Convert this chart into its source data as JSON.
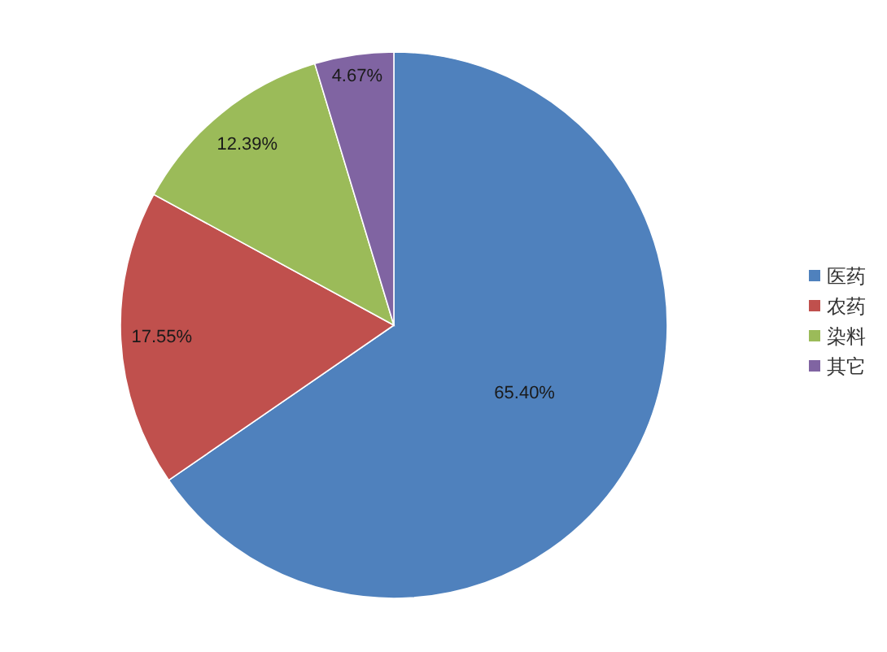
{
  "chart_data": {
    "type": "pie",
    "categories": [
      "医药",
      "农药",
      "染料",
      "其它"
    ],
    "values": [
      65.4,
      17.55,
      12.39,
      4.67
    ],
    "value_labels": [
      "65.40%",
      "17.55%",
      "12.39%",
      "4.67%"
    ],
    "colors": [
      "#4f81bd",
      "#c0504d",
      "#9bbb59",
      "#8064a2"
    ],
    "legend": "right"
  }
}
